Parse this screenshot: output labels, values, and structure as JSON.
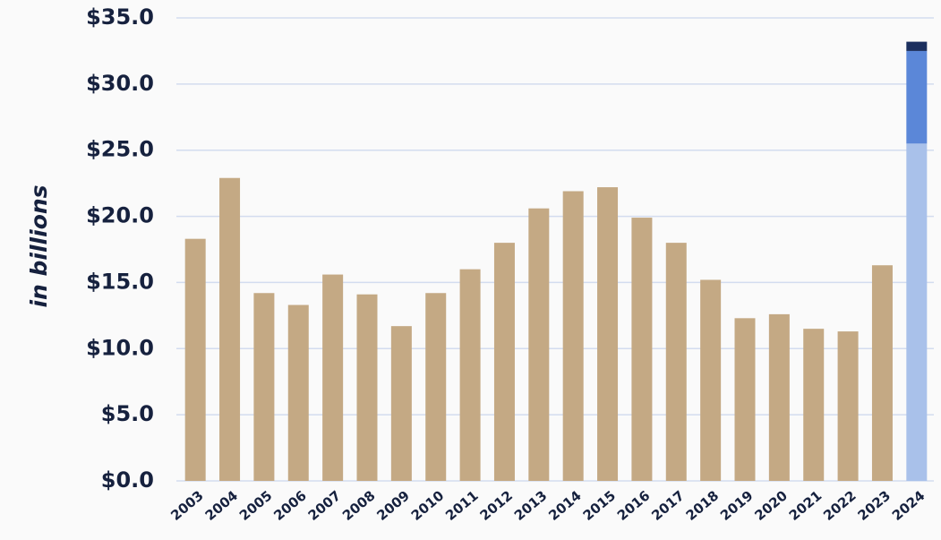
{
  "chart_data": {
    "type": "stacked_bar",
    "y_label": "in billions",
    "categories": [
      "2003",
      "2004",
      "2005",
      "2006",
      "2007",
      "2008",
      "2009",
      "2010",
      "2011",
      "2012",
      "2013",
      "2014",
      "2015",
      "2016",
      "2017",
      "2018",
      "2019",
      "2020",
      "2021",
      "2022",
      "2023",
      "2024"
    ],
    "series": [
      {
        "color": "#c4a984",
        "values": [
          18.3,
          22.9,
          14.2,
          13.3,
          15.6,
          14.1,
          11.7,
          14.2,
          16.0,
          18.0,
          20.6,
          21.9,
          22.2,
          19.9,
          18.0,
          15.2,
          12.3,
          12.6,
          11.5,
          11.3,
          16.3,
          null
        ]
      },
      {
        "color": "#a9c1ea",
        "values": [
          null,
          null,
          null,
          null,
          null,
          null,
          null,
          null,
          null,
          null,
          null,
          null,
          null,
          null,
          null,
          null,
          null,
          null,
          null,
          null,
          null,
          25.5
        ]
      },
      {
        "color": "#5b87d8",
        "values": [
          null,
          null,
          null,
          null,
          null,
          null,
          null,
          null,
          null,
          null,
          null,
          null,
          null,
          null,
          null,
          null,
          null,
          null,
          null,
          null,
          null,
          7.0
        ]
      },
      {
        "color": "#1b2f5e",
        "values": [
          null,
          null,
          null,
          null,
          null,
          null,
          null,
          null,
          null,
          null,
          null,
          null,
          null,
          null,
          null,
          null,
          null,
          null,
          null,
          null,
          null,
          0.7
        ]
      }
    ],
    "ylim": [
      0,
      35
    ],
    "yticks": [
      {
        "value": 0,
        "label": "$0.0"
      },
      {
        "value": 5,
        "label": "$5.0"
      },
      {
        "value": 10,
        "label": "$10.0"
      },
      {
        "value": 15,
        "label": "$15.0"
      },
      {
        "value": 20,
        "label": "$20.0"
      },
      {
        "value": 25,
        "label": "$25.0"
      },
      {
        "value": 30,
        "label": "$30.0"
      },
      {
        "value": 35,
        "label": "$35.0"
      }
    ],
    "grid": true
  }
}
